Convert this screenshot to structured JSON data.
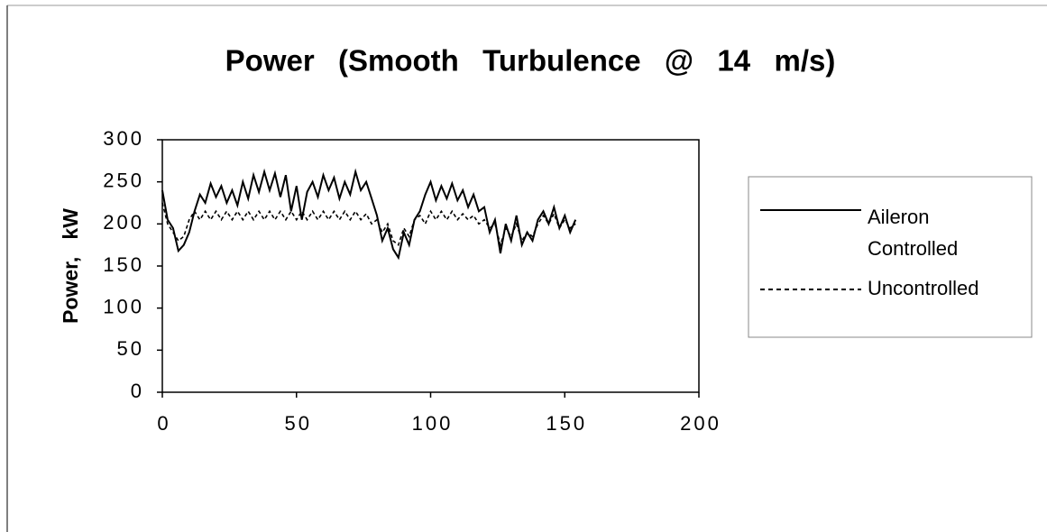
{
  "chart_data": {
    "type": "line",
    "title": "Power  (Smooth  Turbulence  @  14  m/s)",
    "y_label": "Power,   kW",
    "x": [
      0,
      2,
      4,
      6,
      8,
      10,
      12,
      14,
      16,
      18,
      20,
      22,
      24,
      26,
      28,
      30,
      32,
      34,
      36,
      38,
      40,
      42,
      44,
      46,
      48,
      50,
      52,
      54,
      56,
      58,
      60,
      62,
      64,
      66,
      68,
      70,
      72,
      74,
      76,
      78,
      80,
      82,
      84,
      86,
      88,
      90,
      92,
      94,
      96,
      98,
      100,
      102,
      104,
      106,
      108,
      110,
      112,
      114,
      116,
      118,
      120,
      122,
      124,
      126,
      128,
      130,
      132,
      134,
      136,
      138,
      140,
      142,
      144,
      146,
      148,
      150,
      152,
      154
    ],
    "series": [
      {
        "name": "Aileron Controlled",
        "color": "#000000",
        "dash": false,
        "values": [
          240,
          205,
          195,
          168,
          175,
          190,
          215,
          235,
          225,
          248,
          232,
          245,
          225,
          240,
          222,
          250,
          230,
          258,
          238,
          262,
          240,
          260,
          232,
          258,
          215,
          245,
          205,
          238,
          250,
          232,
          258,
          240,
          255,
          230,
          250,
          235,
          262,
          240,
          250,
          230,
          210,
          180,
          195,
          170,
          160,
          190,
          175,
          205,
          215,
          235,
          250,
          228,
          245,
          230,
          248,
          228,
          240,
          220,
          235,
          215,
          220,
          190,
          205,
          165,
          200,
          180,
          210,
          175,
          190,
          180,
          205,
          215,
          200,
          220,
          195,
          210,
          190,
          205
        ]
      },
      {
        "name": "Uncontrolled",
        "color": "#000000",
        "dash": true,
        "values": [
          225,
          200,
          190,
          180,
          185,
          205,
          215,
          205,
          215,
          205,
          215,
          205,
          215,
          205,
          215,
          205,
          215,
          205,
          215,
          205,
          215,
          205,
          215,
          205,
          215,
          205,
          215,
          205,
          215,
          205,
          215,
          205,
          215,
          205,
          215,
          205,
          215,
          205,
          212,
          200,
          205,
          190,
          200,
          180,
          175,
          195,
          185,
          205,
          210,
          200,
          215,
          205,
          215,
          205,
          215,
          205,
          212,
          205,
          210,
          200,
          205,
          195,
          200,
          175,
          195,
          185,
          200,
          180,
          190,
          185,
          200,
          210,
          200,
          212,
          195,
          205,
          195,
          200
        ]
      }
    ],
    "xlim": [
      0,
      200
    ],
    "xticks": [
      0,
      50,
      100,
      150,
      200
    ],
    "ylim": [
      0,
      300
    ],
    "yticks": [
      0,
      50,
      100,
      150,
      200,
      250,
      300
    ],
    "legend": "right"
  }
}
